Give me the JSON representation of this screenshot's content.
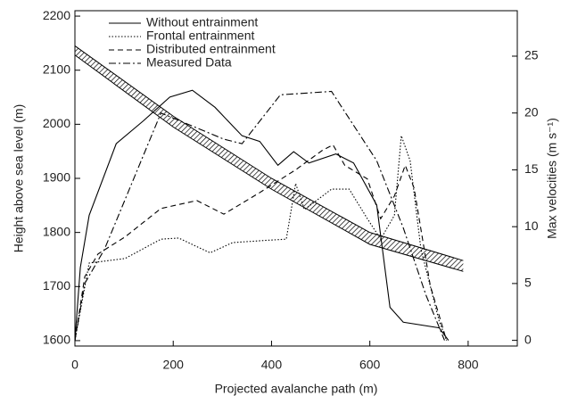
{
  "chart_data": {
    "type": "line",
    "xlabel": "Projected avalanche path (m)",
    "ylabel": "Height above sea level (m)",
    "y2label": "Max velocities (m s⁻¹)",
    "xlim": [
      0,
      900
    ],
    "xticks": [
      0,
      200,
      400,
      600,
      800
    ],
    "ylim": [
      1590,
      2210
    ],
    "yticks": [
      1600,
      1700,
      1800,
      1900,
      2000,
      2100,
      2200
    ],
    "y2lim": [
      -0.5,
      29
    ],
    "y2ticks": [
      0,
      5,
      10,
      15,
      20,
      25
    ],
    "terrain": {
      "x": [
        0,
        200,
        400,
        600,
        790
      ],
      "upper": [
        2145,
        2015,
        1900,
        1800,
        1748
      ],
      "lower": [
        2128,
        1995,
        1880,
        1778,
        1728
      ]
    },
    "series": [
      {
        "name": "Without entrainment",
        "color": "#000000",
        "dash": "none",
        "axis": "y2",
        "x": [
          0,
          11,
          29,
          84,
          139,
          193,
          239,
          285,
          340,
          376,
          413,
          445,
          476,
          531,
          567,
          614,
          641,
          668,
          741,
          760
        ],
        "values": [
          0,
          6.4,
          11,
          17.3,
          19.3,
          21.4,
          22,
          20.5,
          18,
          17.5,
          15.4,
          16.6,
          15.6,
          16.4,
          15.6,
          11.9,
          2.9,
          1.6,
          1.1,
          0
        ]
      },
      {
        "name": "Frontal entrainment",
        "color": "#000000",
        "dash": "1.5 2",
        "axis": "y2",
        "x": [
          0,
          29,
          102,
          175,
          211,
          275,
          321,
          390,
          430,
          449,
          467,
          522,
          558,
          595,
          622,
          650,
          664,
          682,
          704,
          741,
          756
        ],
        "values": [
          0,
          6.8,
          7.2,
          8.9,
          9,
          7.7,
          8.6,
          8.8,
          8.9,
          13.8,
          11.5,
          13.3,
          13.3,
          10.7,
          8.9,
          11,
          18,
          15.8,
          8,
          1.7,
          0
        ]
      },
      {
        "name": "Distributed entrainment",
        "color": "#000000",
        "dash": "6 4",
        "axis": "y2",
        "x": [
          0,
          20,
          47,
          102,
          175,
          248,
          303,
          376,
          449,
          503,
          525,
          549,
          595,
          622,
          650,
          672,
          690,
          723,
          756
        ],
        "values": [
          0,
          5.6,
          7.6,
          9.1,
          11.6,
          12.3,
          11.1,
          13,
          15,
          16.7,
          17.2,
          15.4,
          14.2,
          10.7,
          12.7,
          15.4,
          13.4,
          4.8,
          0
        ]
      },
      {
        "name": "Measured Data",
        "color": "#000000",
        "dash": "8 3 2 3",
        "axis": "y2",
        "x": [
          0,
          20,
          60,
          175,
          303,
          340,
          418,
          522,
          614,
          668,
          714,
          752
        ],
        "values": [
          0,
          5,
          8,
          20,
          17.7,
          17.3,
          21.6,
          21.9,
          15.8,
          9.9,
          4,
          0
        ]
      }
    ]
  }
}
